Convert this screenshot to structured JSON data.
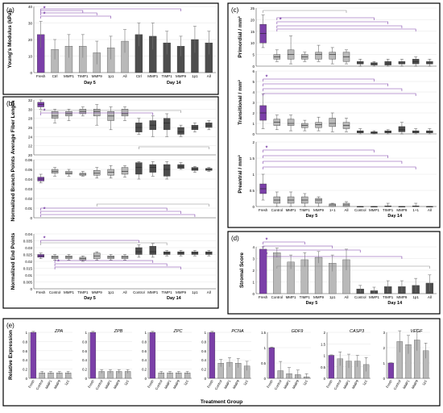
{
  "colors": {
    "fresh": "#7b3fa8",
    "day5": "#b9b9b9",
    "day14": "#4d4d4d",
    "sig": "#7b3fa8",
    "gray": "#8a8a8a",
    "frame": "#000000"
  },
  "chart_data": [
    {
      "id": "a",
      "type": "bar",
      "panel": "(a)",
      "ylabel": "Young's Modulus (kPa)",
      "ylim": [
        0,
        40
      ],
      "ticks": [
        0,
        10,
        20,
        30,
        40
      ],
      "categories": [
        "Fresh",
        "Ctrl",
        "MMP1",
        "TIMP1",
        "MMP9",
        "1p1",
        "All",
        "Ctrl",
        "MMP1",
        "TIMP1",
        "MMP9",
        "1p1",
        "All"
      ],
      "values": [
        23,
        14,
        16,
        16,
        12,
        15,
        19,
        23,
        22,
        18,
        16,
        20,
        18
      ],
      "errors": [
        8,
        6,
        7,
        7,
        7,
        7,
        7,
        7,
        8,
        7,
        6,
        8,
        7
      ],
      "groups": [
        "Day 5",
        "Day 14"
      ]
    },
    {
      "id": "c1",
      "type": "box",
      "panel": "(c)",
      "ylabel": "Primordial / mm²",
      "ylim": [
        0,
        25
      ],
      "ticks": [
        0,
        5,
        10,
        15,
        20,
        25
      ],
      "categories": [
        "Fresh",
        "Control",
        "MMP1",
        "TIMP1",
        "MMP9",
        "1+1",
        "All",
        "Control",
        "MMP1",
        "TIMP1",
        "MMP9",
        "1+1",
        "All"
      ],
      "median": [
        14,
        4,
        5,
        4,
        5,
        5,
        4,
        1,
        1,
        1,
        1,
        2,
        1
      ],
      "q1": [
        10,
        3,
        3,
        3,
        3,
        3,
        2,
        1,
        0.5,
        0.5,
        1,
        1,
        1
      ],
      "q3": [
        18,
        5,
        7,
        5,
        6,
        6,
        6,
        2,
        1.5,
        2,
        2,
        3,
        2
      ],
      "wlo": [
        8,
        2,
        1,
        2,
        2,
        1,
        1,
        0,
        0,
        0,
        0,
        0,
        0
      ],
      "whi": [
        22,
        7,
        13,
        6,
        9,
        8,
        7,
        3,
        2,
        3,
        3,
        4,
        3
      ]
    },
    {
      "id": "c2",
      "type": "box",
      "ylabel": "Transitional / mm²",
      "ylim": [
        0,
        6
      ],
      "ticks": [
        0,
        1,
        2,
        3,
        4,
        5,
        6
      ],
      "categories": [
        "Fresh",
        "Control",
        "MMP1",
        "TIMP1",
        "MMP9",
        "1+1",
        "All",
        "Control",
        "MMP1",
        "TIMP1",
        "MMP9",
        "1+1",
        "All"
      ],
      "median": [
        2,
        1.1,
        1,
        0.8,
        0.9,
        1,
        0.8,
        0.2,
        0.1,
        0.2,
        0.4,
        0.2,
        0.2
      ],
      "q1": [
        1.3,
        0.8,
        0.8,
        0.6,
        0.6,
        0.7,
        0.5,
        0.1,
        0.05,
        0.1,
        0.2,
        0.1,
        0.1
      ],
      "q3": [
        2.7,
        1.4,
        1.4,
        1,
        1.1,
        1.5,
        1.1,
        0.3,
        0.2,
        0.3,
        0.7,
        0.3,
        0.3
      ],
      "wlo": [
        0.5,
        0.4,
        0.3,
        0.3,
        0.3,
        0.2,
        0.2,
        0,
        0,
        0,
        0,
        0,
        0
      ],
      "whi": [
        3.8,
        1.8,
        1.8,
        1.3,
        1.6,
        2,
        1.5,
        0.5,
        0.3,
        0.4,
        1.1,
        0.5,
        0.5
      ]
    },
    {
      "id": "c3",
      "type": "box",
      "ylabel": "Preantral / mm²",
      "ylim": [
        0,
        2
      ],
      "ticks": [
        0,
        0.5,
        1,
        1.5,
        2
      ],
      "categories": [
        "Fresh",
        "Control",
        "MMP1",
        "TIMP1",
        "MMP9",
        "1+1",
        "All",
        "Control",
        "MMP1",
        "TIMP1",
        "MMP9",
        "1+1",
        "All"
      ],
      "median": [
        0.55,
        0.2,
        0.2,
        0.2,
        0.2,
        0.05,
        0.05,
        0,
        0,
        0,
        0,
        0,
        0
      ],
      "q1": [
        0.4,
        0.1,
        0.1,
        0.1,
        0.1,
        0,
        0,
        0,
        0,
        0,
        0,
        0,
        0
      ],
      "q3": [
        0.7,
        0.3,
        0.3,
        0.3,
        0.25,
        0.08,
        0.1,
        0,
        0,
        0.02,
        0,
        0.02,
        0
      ],
      "wlo": [
        0.2,
        0,
        0,
        0,
        0,
        0,
        0,
        0,
        0,
        0,
        0,
        0,
        0
      ],
      "whi": [
        1,
        0.45,
        0.45,
        0.4,
        0.3,
        0.1,
        0.15,
        0,
        0,
        0.1,
        0,
        0.1,
        0
      ]
    },
    {
      "id": "b1",
      "type": "box",
      "panel": "(b)",
      "ylabel": "Average Fiber Length",
      "ylim": [
        20,
        32
      ],
      "ticks": [
        20,
        22,
        24,
        26,
        28,
        30,
        32
      ],
      "categories": [
        "Fresh",
        "Control",
        "MMP1",
        "TIMP1",
        "MMP9",
        "1p1",
        "All",
        "Control",
        "MMP1",
        "TIMP1",
        "MMP9",
        "1p1",
        "All"
      ],
      "median": [
        31,
        28.5,
        29,
        29.5,
        29.5,
        28.5,
        29,
        26,
        26.5,
        27,
        25,
        26,
        26.5
      ],
      "q1": [
        30.5,
        28,
        28.5,
        29,
        28.5,
        27.5,
        28.5,
        25,
        25.5,
        25.5,
        24.5,
        25.5,
        26
      ],
      "q3": [
        31.5,
        29.5,
        29.5,
        30,
        30,
        29.5,
        30,
        27,
        27.5,
        28,
        26,
        26.5,
        27
      ],
      "wlo": [
        30,
        27,
        27.5,
        28.5,
        26.5,
        25.5,
        27.5,
        24.5,
        24,
        24,
        24,
        25,
        25.5
      ],
      "whi": [
        32,
        30,
        30,
        30.5,
        31,
        30.5,
        30.5,
        28,
        28.5,
        29,
        26.5,
        27,
        27.5
      ]
    },
    {
      "id": "b2",
      "type": "box",
      "ylabel": "Normalized Branch Points",
      "ylim": [
        0,
        0.06
      ],
      "ticks": [
        0,
        0.01,
        0.02,
        0.03,
        0.04,
        0.05,
        0.06
      ],
      "categories": [
        "Fresh",
        "Control",
        "MMP1",
        "TIMP1",
        "MMP9",
        "1p1",
        "All",
        "Control",
        "MMP1",
        "TIMP1",
        "MMP9",
        "1p1",
        "All"
      ],
      "median": [
        0.04,
        0.048,
        0.046,
        0.045,
        0.046,
        0.047,
        0.048,
        0.052,
        0.052,
        0.05,
        0.053,
        0.05,
        0.05
      ],
      "q1": [
        0.038,
        0.046,
        0.045,
        0.044,
        0.044,
        0.044,
        0.045,
        0.045,
        0.047,
        0.043,
        0.051,
        0.049,
        0.049
      ],
      "q3": [
        0.042,
        0.05,
        0.048,
        0.046,
        0.049,
        0.05,
        0.052,
        0.057,
        0.055,
        0.055,
        0.055,
        0.052,
        0.051
      ],
      "wlo": [
        0.036,
        0.043,
        0.043,
        0.043,
        0.041,
        0.041,
        0.042,
        0.04,
        0.043,
        0.04,
        0.05,
        0.047,
        0.048
      ],
      "whi": [
        0.045,
        0.052,
        0.05,
        0.048,
        0.052,
        0.054,
        0.054,
        0.058,
        0.058,
        0.058,
        0.057,
        0.053,
        0.052
      ]
    },
    {
      "id": "b3",
      "type": "box",
      "ylabel": "Normalized End Points",
      "ylim": [
        0,
        0.04
      ],
      "ticks": [
        0,
        0.005,
        0.01,
        0.015,
        0.02,
        0.025,
        0.03,
        0.035,
        0.04
      ],
      "categories": [
        "Fresh",
        "Control",
        "MMP1",
        "TIMP1",
        "MMP9",
        "1p1",
        "All",
        "Control",
        "MMP1",
        "TIMP1",
        "MMP9",
        "1p1",
        "All"
      ],
      "median": [
        0.024,
        0.023,
        0.023,
        0.022,
        0.024,
        0.023,
        0.023,
        0.027,
        0.027,
        0.026,
        0.026,
        0.026,
        0.026
      ],
      "q1": [
        0.023,
        0.022,
        0.022,
        0.021,
        0.022,
        0.022,
        0.022,
        0.025,
        0.025,
        0.025,
        0.025,
        0.025,
        0.025
      ],
      "q3": [
        0.025,
        0.024,
        0.024,
        0.023,
        0.026,
        0.024,
        0.024,
        0.03,
        0.031,
        0.027,
        0.027,
        0.027,
        0.027
      ],
      "wlo": [
        0.022,
        0.021,
        0.021,
        0.02,
        0.021,
        0.021,
        0.021,
        0.023,
        0.023,
        0.024,
        0.024,
        0.024,
        0.024
      ],
      "whi": [
        0.026,
        0.025,
        0.025,
        0.024,
        0.027,
        0.025,
        0.025,
        0.032,
        0.033,
        0.028,
        0.028,
        0.028,
        0.028
      ]
    },
    {
      "id": "d",
      "type": "bar",
      "panel": "(d)",
      "ylabel": "Stromal Score",
      "ylim": [
        0,
        4
      ],
      "ticks": [
        0,
        1,
        2,
        3,
        4
      ],
      "categories": [
        "Fresh",
        "Control",
        "MMP1",
        "TIMP1",
        "MMP9",
        "1p1",
        "All",
        "Control",
        "MMP1",
        "TIMP1",
        "MMP9",
        "1p1",
        "All"
      ],
      "values": [
        3.8,
        3.5,
        2.7,
        2.9,
        3.1,
        2.6,
        2.9,
        0.4,
        0.25,
        0.6,
        0.6,
        0.7,
        0.9
      ],
      "errors": [
        0.2,
        0.4,
        0.6,
        0.6,
        0.5,
        0.7,
        0.9,
        0.3,
        0.3,
        0.5,
        0.5,
        0.6,
        0.7
      ]
    },
    {
      "id": "e",
      "type": "bar",
      "panel": "(e)",
      "ylabel": "Relative Expression",
      "xlabel": "Treatment Group",
      "genes": [
        {
          "name": "ZPA",
          "ylim": [
            0,
            1
          ],
          "ticks": [
            0,
            0.2,
            0.4,
            0.6,
            0.8,
            1
          ],
          "categories": [
            "Fresh",
            "Control",
            "MMP1",
            "MMP9",
            "1p1"
          ],
          "values": [
            1,
            0.12,
            0.12,
            0.12,
            0.12
          ],
          "errors": [
            0.02,
            0.03,
            0.03,
            0.03,
            0.03
          ]
        },
        {
          "name": "ZPB",
          "ylim": [
            0,
            1
          ],
          "ticks": [
            0,
            0.2,
            0.4,
            0.6,
            0.8,
            1
          ],
          "categories": [
            "Fresh",
            "Control",
            "MMP1",
            "MMP9",
            "1p1"
          ],
          "values": [
            1,
            0.15,
            0.15,
            0.15,
            0.15
          ],
          "errors": [
            0.02,
            0.04,
            0.04,
            0.04,
            0.04
          ]
        },
        {
          "name": "ZPC",
          "ylim": [
            0,
            1
          ],
          "ticks": [
            0,
            0.2,
            0.4,
            0.6,
            0.8,
            1
          ],
          "categories": [
            "Fresh",
            "Control",
            "MMP1",
            "MMP9",
            "1p1"
          ],
          "values": [
            1,
            0.12,
            0.12,
            0.12,
            0.12
          ],
          "errors": [
            0.02,
            0.03,
            0.03,
            0.03,
            0.03
          ]
        },
        {
          "name": "PCNA",
          "ylim": [
            0,
            1
          ],
          "ticks": [
            0,
            0.2,
            0.4,
            0.6,
            0.8,
            1
          ],
          "categories": [
            "Fresh",
            "Control",
            "MMP1",
            "MMP9",
            "1p1"
          ],
          "values": [
            1,
            0.33,
            0.35,
            0.33,
            0.27
          ],
          "errors": [
            0.02,
            0.08,
            0.1,
            0.1,
            0.1
          ]
        },
        {
          "name": "GDF9",
          "ylim": [
            0,
            1.5
          ],
          "ticks": [
            0,
            0.5,
            1,
            1.5
          ],
          "categories": [
            "Fresh",
            "Control",
            "MMP1",
            "MMP9",
            "1p1"
          ],
          "values": [
            1,
            0.25,
            0.15,
            0.12,
            0.05
          ],
          "errors": [
            0.02,
            0.3,
            0.2,
            0.15,
            0.1
          ]
        },
        {
          "name": "CASP3",
          "ylim": [
            0,
            2
          ],
          "ticks": [
            0,
            0.5,
            1,
            1.5,
            2
          ],
          "categories": [
            "Fresh",
            "Control",
            "MMP1",
            "MMP9",
            "1p1"
          ],
          "values": [
            1,
            0.85,
            0.75,
            0.75,
            0.6
          ],
          "errors": [
            0.02,
            0.3,
            0.3,
            0.25,
            0.3
          ]
        },
        {
          "name": "VEGF",
          "ylim": [
            0,
            3
          ],
          "ticks": [
            0,
            1,
            2,
            3
          ],
          "categories": [
            "Fresh",
            "Control",
            "MMP1",
            "MMP9",
            "1p1"
          ],
          "values": [
            1,
            2.4,
            2.2,
            2.5,
            1.8
          ],
          "errors": [
            0.02,
            0.7,
            0.6,
            0.7,
            0.5
          ]
        }
      ]
    }
  ],
  "labels": {
    "day5": "Day 5",
    "day14": "Day 14",
    "star": "*"
  }
}
